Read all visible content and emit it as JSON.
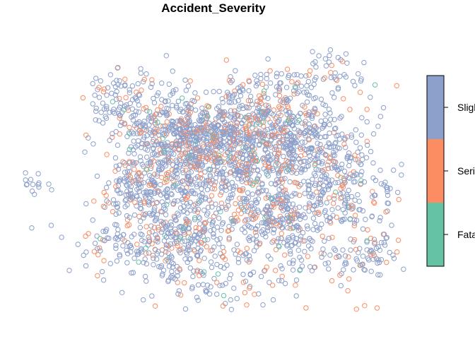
{
  "title": "Accident_Severity",
  "legend": {
    "placement": "right",
    "categories": [
      {
        "label": "Slight",
        "color": "#8DA0CB"
      },
      {
        "label": "Serious",
        "color": "#FC8D62"
      },
      {
        "label": "Fatal",
        "color": "#66C2A5"
      }
    ]
  },
  "points": {
    "description_note": "",
    "clusters": []
  }
}
